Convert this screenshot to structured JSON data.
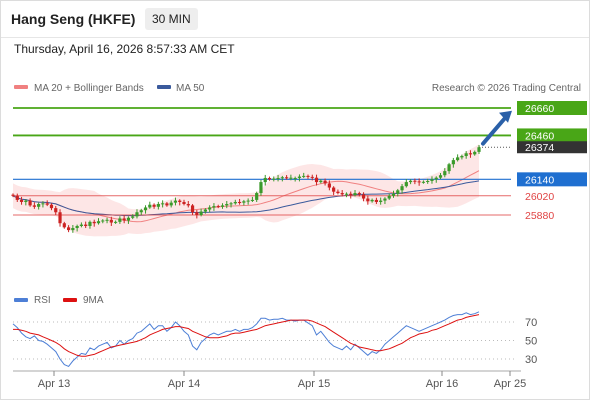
{
  "header": {
    "title": "Hang Seng (HKFE)",
    "timeframe": "30 MIN"
  },
  "datetime": "Thursday, April 16, 2026 8:57:33 AM CET",
  "legend": {
    "ma20_label": "MA 20 + Bollinger Bands",
    "ma50_label": "MA 50",
    "copyright": "Research © 2026 Trading Central"
  },
  "rsi_legend": {
    "rsi_label": "RSI",
    "ma9_label": "9MA"
  },
  "colors": {
    "up": "#3a9a2a",
    "down": "#cc2222",
    "ma20": "#f08080",
    "ma50": "#3a5a9c",
    "band_fill": "#fde2e2",
    "target": "#49a617",
    "pivot": "#1f6fd0",
    "support": "#e04444",
    "price_tag": "#333333",
    "arrow": "#2a60a8",
    "rsi": "#4d7fd6",
    "ma9": "#dd1111"
  },
  "chart_data": [
    {
      "type": "candlestick",
      "title": "Hang Seng (HKFE)",
      "timeframe": "30 MIN",
      "x_ticks": [
        "Apr 13",
        "Apr 14",
        "Apr 15",
        "Apr 16",
        "Apr 25"
      ],
      "y_range": [
        25700,
        26740
      ],
      "grid": false,
      "legend_position": "top-left",
      "series": [
        {
          "name": "MA 20 + Bollinger Bands",
          "style": "line+band"
        },
        {
          "name": "MA 50",
          "style": "line"
        }
      ],
      "close": [
        26020,
        25990,
        25975,
        25985,
        25950,
        25940,
        25960,
        25965,
        25955,
        25930,
        25900,
        25820,
        25790,
        25770,
        25785,
        25800,
        25810,
        25800,
        25830,
        25820,
        25835,
        25840,
        25845,
        25825,
        25830,
        25855,
        25840,
        25860,
        25870,
        25900,
        25915,
        25935,
        25955,
        25940,
        25960,
        25965,
        25950,
        25970,
        25985,
        25975,
        25960,
        25950,
        25900,
        25880,
        25905,
        25920,
        25935,
        25945,
        25940,
        25950,
        25960,
        25965,
        25975,
        25970,
        25980,
        25985,
        25990,
        26040,
        26120,
        26150,
        26140,
        26145,
        26150,
        26155,
        26148,
        26152,
        26150,
        26160,
        26165,
        26158,
        26152,
        26120,
        26130,
        26110,
        26080,
        26050,
        26040,
        26030,
        26035,
        26025,
        26040,
        26030,
        26000,
        25980,
        25990,
        25975,
        25985,
        26000,
        26020,
        26035,
        26060,
        26090,
        26120,
        26130,
        26125,
        26118,
        26122,
        26128,
        26140,
        26152,
        26170,
        26200,
        26250,
        26280,
        26300,
        26310,
        26330,
        26322,
        26340,
        26374
      ],
      "levels": [
        {
          "label": "26660",
          "kind": "target"
        },
        {
          "label": "26460",
          "kind": "target"
        },
        {
          "label": "26374",
          "kind": "last"
        },
        {
          "label": "26140",
          "kind": "pivot"
        },
        {
          "label": "26020",
          "kind": "support"
        },
        {
          "label": "25880",
          "kind": "support"
        }
      ]
    },
    {
      "type": "line",
      "title": "RSI",
      "y_ticks": [
        70,
        50,
        30
      ],
      "y_range": [
        10,
        90
      ],
      "grid": true,
      "series": [
        {
          "name": "RSI",
          "values": [
            68,
            64,
            58,
            54,
            52,
            55,
            50,
            49,
            46,
            42,
            38,
            30,
            24,
            22,
            28,
            32,
            36,
            35,
            42,
            40,
            44,
            46,
            48,
            42,
            44,
            50,
            46,
            50,
            52,
            58,
            60,
            64,
            68,
            62,
            66,
            66,
            60,
            64,
            70,
            66,
            60,
            56,
            44,
            40,
            48,
            52,
            56,
            58,
            56,
            58,
            60,
            60,
            62,
            60,
            62,
            62,
            64,
            68,
            74,
            74,
            72,
            73,
            73,
            74,
            72,
            72,
            71,
            72,
            72,
            69,
            66,
            56,
            60,
            54,
            48,
            44,
            42,
            40,
            44,
            40,
            46,
            42,
            38,
            34,
            38,
            36,
            40,
            46,
            50,
            54,
            58,
            62,
            66,
            64,
            62,
            60,
            62,
            64,
            66,
            68,
            70,
            72,
            75,
            77,
            78,
            78,
            80,
            78,
            79,
            81
          ]
        },
        {
          "name": "9MA",
          "values": [
            62,
            62,
            61,
            60,
            58,
            57,
            56,
            54,
            52,
            50,
            48,
            45,
            41,
            38,
            36,
            34,
            33,
            33,
            34,
            35,
            37,
            39,
            41,
            43,
            44,
            45,
            46,
            47,
            48,
            49,
            51,
            53,
            56,
            58,
            60,
            62,
            63,
            64,
            65,
            65,
            64,
            63,
            60,
            58,
            56,
            54,
            53,
            53,
            53,
            54,
            55,
            57,
            58,
            58,
            59,
            60,
            61,
            62,
            64,
            66,
            67,
            68,
            69,
            70,
            71,
            72,
            72,
            72,
            72,
            72,
            71,
            69,
            67,
            65,
            62,
            59,
            56,
            53,
            50,
            47,
            45,
            43,
            42,
            41,
            40,
            39,
            39,
            40,
            41,
            43,
            45,
            47,
            50,
            53,
            55,
            57,
            58,
            59,
            61,
            62,
            64,
            66,
            68,
            70,
            72,
            73,
            75,
            76,
            77,
            78
          ]
        }
      ]
    }
  ]
}
